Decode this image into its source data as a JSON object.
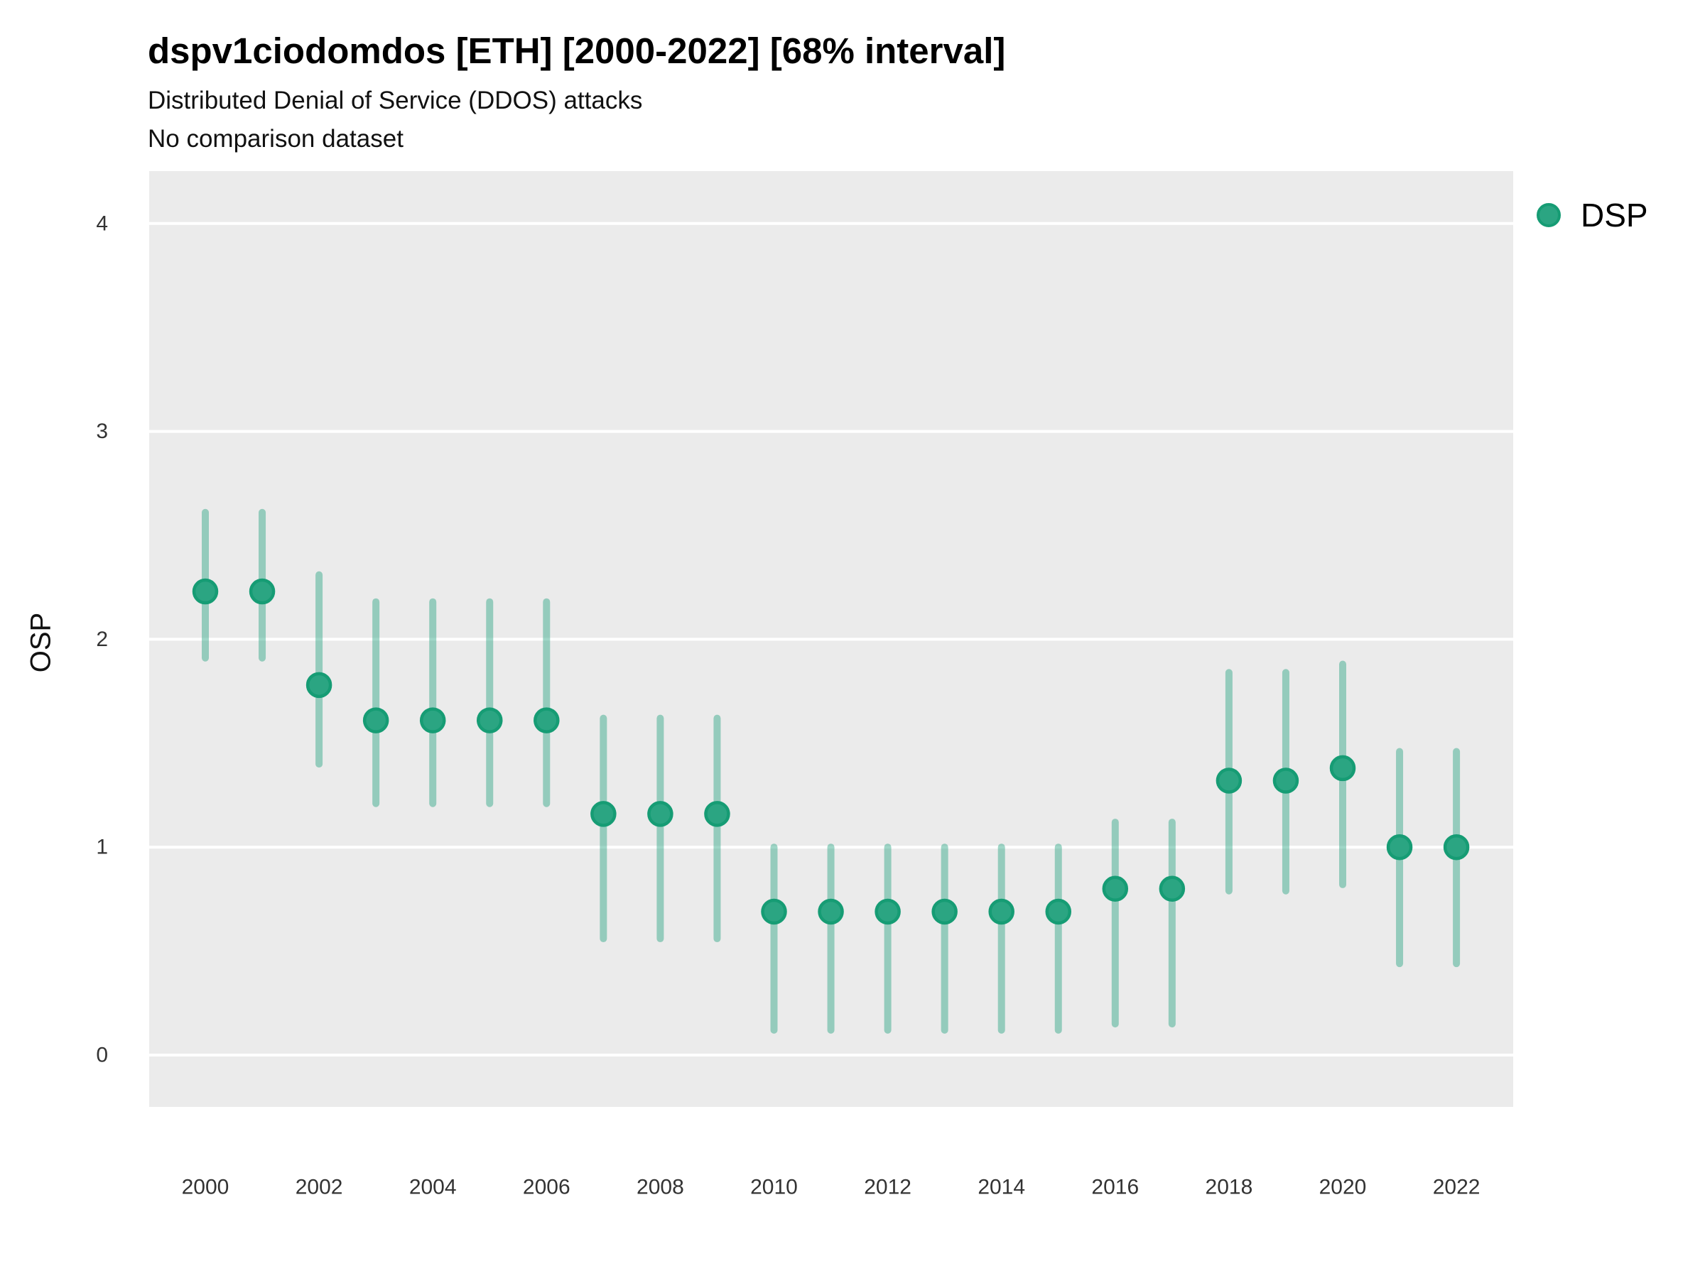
{
  "header": {
    "title": "dspv1ciodomdos [ETH] [2000-2022] [68% interval]",
    "subtitle": "Distributed Denial of Service (DDOS) attacks",
    "note": "No comparison dataset"
  },
  "legend": {
    "items": [
      {
        "label": "DSP",
        "marker": "circle-icon"
      }
    ]
  },
  "axes": {
    "y_label": "OSP",
    "x_ticks": [
      "2000",
      "2002",
      "2004",
      "2006",
      "2008",
      "2010",
      "2012",
      "2014",
      "2016",
      "2018",
      "2020",
      "2022"
    ],
    "y_ticks": [
      "0",
      "1",
      "2",
      "3",
      "4"
    ]
  },
  "style": {
    "panel_background": "#ebebeb",
    "gridline_color": "#ffffff",
    "marker_fill": "#2ba582",
    "marker_stroke": "#169c74",
    "interval_color": "rgba(43,165,130,0.45)",
    "tick_label_color": "#333333"
  },
  "chart_data": {
    "type": "scatter",
    "title": "dspv1ciodomdos [ETH] [2000-2022] [68% interval]",
    "subtitle": "Distributed Denial of Service (DDOS) attacks",
    "note": "No comparison dataset",
    "xlabel": "",
    "ylabel": "OSP",
    "interval": "68%",
    "xlim": [
      1999,
      2023
    ],
    "ylim": [
      -0.25,
      4.25
    ],
    "grid": "horizontal gridlines, white on gray panel",
    "legend_position": "top-right",
    "x": [
      2000,
      2001,
      2002,
      2003,
      2004,
      2005,
      2006,
      2007,
      2008,
      2009,
      2010,
      2011,
      2012,
      2013,
      2014,
      2015,
      2016,
      2017,
      2018,
      2019,
      2020,
      2021,
      2022
    ],
    "series": [
      {
        "name": "DSP",
        "values": [
          2.23,
          2.23,
          1.78,
          1.61,
          1.61,
          1.61,
          1.61,
          1.16,
          1.16,
          1.16,
          0.69,
          0.69,
          0.69,
          0.69,
          0.69,
          0.69,
          0.8,
          0.8,
          1.32,
          1.32,
          1.38,
          1.0,
          1.0
        ],
        "lower": [
          1.91,
          1.91,
          1.4,
          1.21,
          1.21,
          1.21,
          1.21,
          0.56,
          0.56,
          0.56,
          0.12,
          0.12,
          0.12,
          0.12,
          0.12,
          0.12,
          0.15,
          0.15,
          0.79,
          0.79,
          0.82,
          0.44,
          0.44
        ],
        "upper": [
          2.61,
          2.61,
          2.31,
          2.18,
          2.18,
          2.18,
          2.18,
          1.62,
          1.62,
          1.62,
          1.0,
          1.0,
          1.0,
          1.0,
          1.0,
          1.0,
          1.12,
          1.12,
          1.84,
          1.84,
          1.88,
          1.46,
          1.46
        ]
      }
    ]
  }
}
